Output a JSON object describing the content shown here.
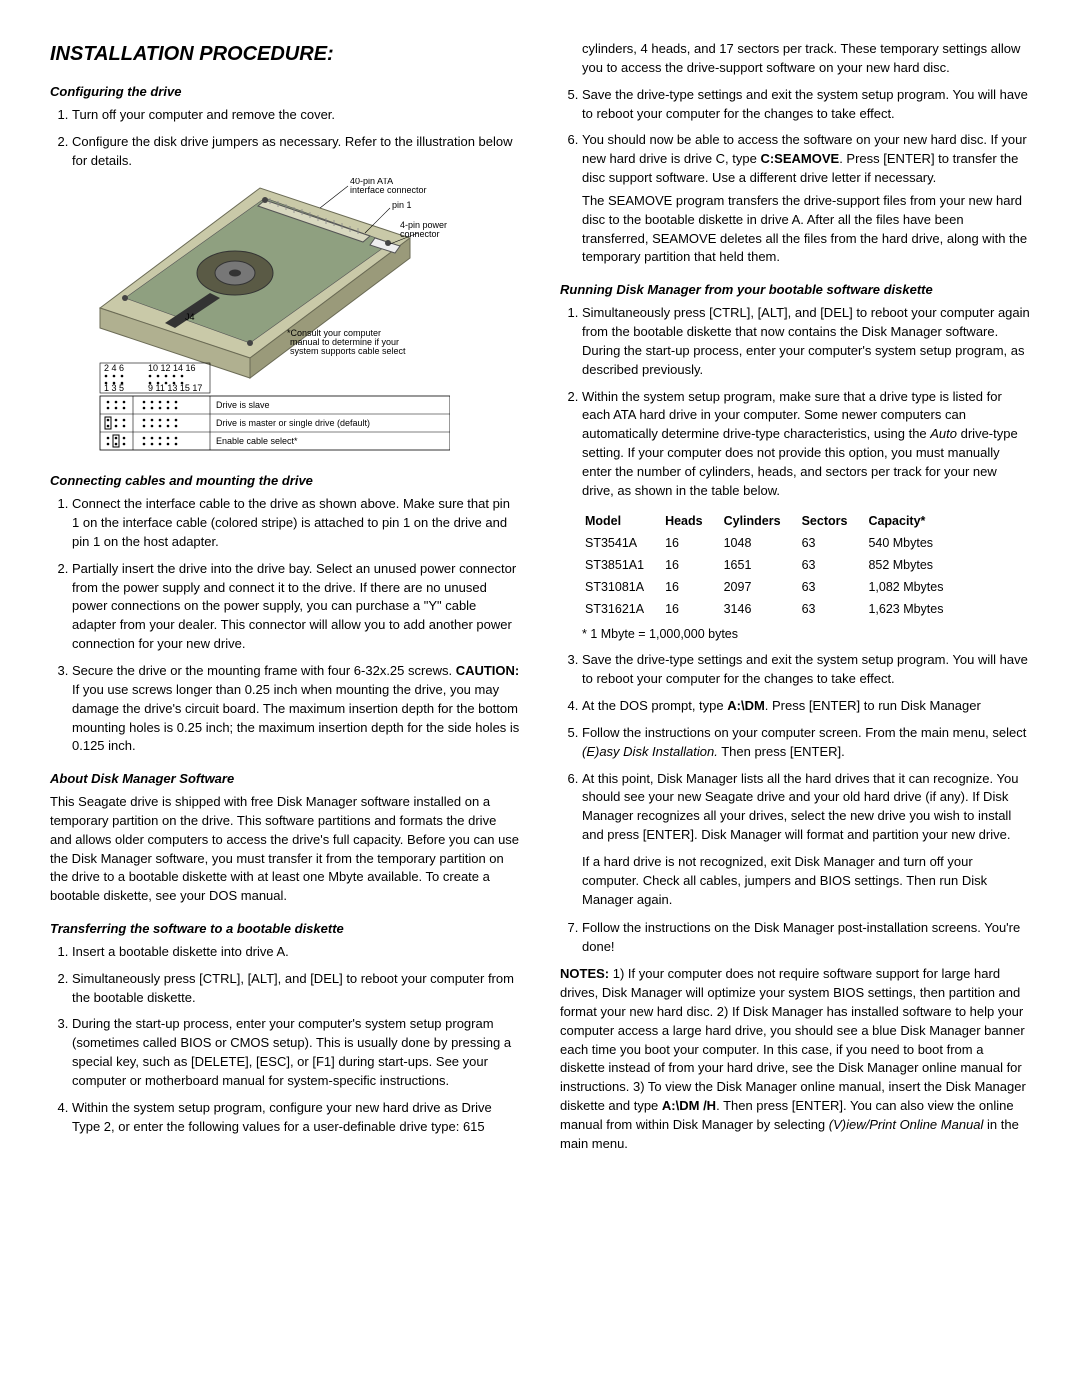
{
  "title": "INSTALLATION PROCEDURE:",
  "h_config": "Configuring the drive",
  "config_steps": [
    "Turn off your computer and remove the cover.",
    "Configure the disk drive jumpers as necessary. Refer to the illustration below for details."
  ],
  "diagram": {
    "label_40pin": "40-pin ATA\ninterface connector",
    "label_pin1": "pin 1",
    "label_4pin": "4-pin power\nconnector",
    "label_j4": "J4",
    "consult_note": "*Consult your computer\nmanual to determine if your\nsystem supports cable select",
    "pin_top": [
      "2",
      "4",
      "6",
      "",
      "10",
      "12",
      "14",
      "16"
    ],
    "pin_bot": [
      "1",
      "3",
      "5",
      "",
      "9",
      "11",
      "13",
      "15",
      "17"
    ],
    "jumper_rows": [
      "Drive is slave",
      "Drive is master or single drive (default)",
      "Enable cable select*"
    ]
  },
  "h_connect": "Connecting cables and mounting the drive",
  "connect_steps": [
    "Connect the interface cable to the drive as shown above. Make sure that pin 1 on the interface cable (colored stripe) is attached to pin 1 on the drive and pin 1 on the host adapter.",
    "Partially insert the drive into the drive bay. Select an unused power connector from the power supply and connect it to the drive. If there are no unused power connections on the power supply, you can purchase a \"Y\" cable adapter from your dealer. This connector will allow you to add another power  connection for your new drive.",
    "Secure the drive or the mounting frame with four 6-32x.25 screws. <b>CAUTION:</b> If you use screws longer than 0.25 inch when mounting the drive, you may damage the drive's circuit board. The maximum insertion depth for the bottom mounting holes is 0.25 inch; the maximum insertion depth for the side holes is 0.125 inch."
  ],
  "h_about": "About Disk Manager Software",
  "about_para": "This Seagate drive is shipped with free Disk Manager software installed on a temporary partition on the drive. This software partitions and formats the drive and allows older computers to access the drive's full capacity. Before you can use the Disk Manager software, you must transfer it from the temporary partition on the drive to a bootable diskette with at least one Mbyte available. To create a bootable diskette, see your DOS manual.",
  "h_transfer": "Transferring the software to a bootable diskette",
  "transfer_steps": [
    "Insert a bootable diskette into drive A.",
    "Simultaneously press [CTRL], [ALT], and [DEL] to reboot your computer from the bootable diskette.",
    "During the start-up process, enter your computer's system setup program (sometimes called BIOS or CMOS setup). This is usually done by pressing a special key, such as [DELETE], [ESC], or [F1] during start-ups. See your computer or motherboard manual for system-specific instructions.",
    "Within the system setup program, configure your new hard drive as Drive Type 2, or enter the following values for a user-definable drive type: 615 cylinders, 4 heads, and 17 sectors per track. These temporary settings allow you to access the drive-support software on your new hard disc.",
    "Save the drive-type settings and exit the system setup program. You will have to reboot your computer for the changes to take effect.",
    "You should now be able to access the software on your new hard disc. If your new hard drive is drive C, type <b>C:SEAMOVE</b>. Press [ENTER] to transfer the disc support software. Use a different drive letter if necessary."
  ],
  "seamove_para": "The SEAMOVE program transfers the drive-support files from your new hard disc to the bootable diskette in drive A. After all the files have been transferred, SEAMOVE deletes all the files from the hard drive, along with the temporary partition that held them.",
  "h_running": "Running Disk Manager from your bootable software diskette",
  "running_steps_a": [
    "Simultaneously press [CTRL], [ALT], and [DEL] to reboot your computer again from the bootable diskette that now contains the Disk Manager software. During the start-up process, enter your computer's system setup program, as described previously.",
    "Within the system setup program, make sure that a drive type is listed for each ATA hard drive in your computer. Some newer computers can automatically determine drive-type characteristics, using the <i>Auto</i> drive-type setting. If your computer does not provide this option, you must manually enter the number of cylinders, heads, and sectors per track for your new drive, as shown in the table below."
  ],
  "drive_table": {
    "headers": [
      "Model",
      "Heads",
      "Cylinders",
      "Sectors",
      "Capacity*"
    ],
    "rows": [
      [
        "ST3541A",
        "16",
        "1048",
        "63",
        "540 Mbytes"
      ],
      [
        "ST3851A1",
        "16",
        "1651",
        "63",
        "852 Mbytes"
      ],
      [
        "ST31081A",
        "16",
        "2097",
        "63",
        "1,082 Mbytes"
      ],
      [
        "ST31621A",
        "16",
        "3146",
        "63",
        "1,623 Mbytes"
      ]
    ],
    "footnote": "* 1 Mbyte = 1,000,000 bytes"
  },
  "running_steps_b": [
    "Save the drive-type settings and exit the system setup program. You will have to reboot your computer for the changes to take effect.",
    "At the DOS prompt, type <b>A:\\DM</b>. Press [ENTER] to run Disk Manager",
    "Follow the instructions on your computer screen. From the main menu, select <i>(E)asy Disk Installation.</i> Then press [ENTER].",
    "At this point, Disk Manager lists all the hard drives that it can recognize. You should see your new Seagate drive and your old hard drive (if any). If Disk Manager recognizes all your drives, select the new drive you wish to install and press [ENTER]. Disk Manager will format and partition your new drive."
  ],
  "notrecog_para": "If a hard drive is not recognized, exit Disk Manager and turn off your computer. Check all cables, jumpers and BIOS settings. Then run Disk Manager again.",
  "running_steps_c": [
    "Follow the instructions on the Disk Manager post-installation screens. You're done!"
  ],
  "notes_para": "<b>NOTES:</b> 1) If your computer does not require software support for large hard drives, Disk Manager will optimize your system BIOS settings, then partition and format your new hard disc. 2) If Disk Manager has installed software to help your computer access a large hard drive, you should see a blue Disk Manager banner each time you boot your computer. In this case, if you need to boot from a diskette instead of from your hard drive, see the Disk Manager online manual for instructions. 3) To view the Disk Manager online manual, insert the Disk Manager diskette and type <b>A:\\DM /H</b>. Then press [ENTER]. You can also view the online manual from within Disk Manager by selecting <i>(V)iew/Print Online Manual</i> in the main menu."
}
